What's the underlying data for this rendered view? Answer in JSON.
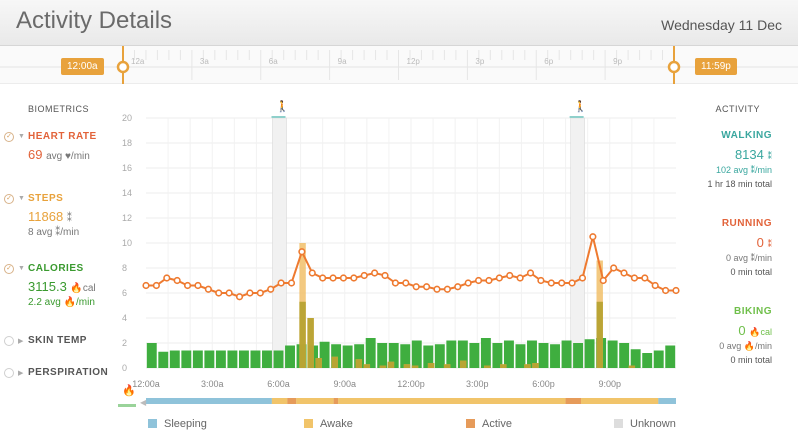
{
  "header": {
    "title": "Activity Details",
    "date": "Wednesday 11 Dec"
  },
  "timebar": {
    "start_label": "12:00a",
    "end_label": "11:59p",
    "ticks": [
      "12a",
      "3a",
      "6a",
      "9a",
      "12p",
      "3p",
      "6p",
      "9p"
    ],
    "selection_start_hour": 0,
    "selection_end_hour": 24
  },
  "biometrics": {
    "heading": "BIOMETRICS",
    "heart_rate": {
      "label": "HEART RATE",
      "value": "69",
      "unit": "avg ♥/min",
      "color": "#e2633a"
    },
    "steps": {
      "label": "STEPS",
      "value": "11868",
      "unit": "⁑",
      "sub": "8 avg ⁑/min",
      "color": "#e8a23c"
    },
    "calories": {
      "label": "CALORIES",
      "value": "3115.3",
      "unit": "🔥cal",
      "sub": "2.2 avg 🔥/min",
      "color": "#3a9a2f"
    },
    "skin_temp": {
      "label": "SKIN TEMP"
    },
    "perspiration": {
      "label": "PERSPIRATION"
    }
  },
  "activity": {
    "heading": "ACTIVITY",
    "walking": {
      "label": "WALKING",
      "value": "8134",
      "unit": "⁑",
      "avg": "102 avg ⁑/min",
      "total": "1 hr 18 min total",
      "color": "#3aa79f"
    },
    "running": {
      "label": "RUNNING",
      "value": "0",
      "unit": "⁑",
      "avg": "0 avg ⁑/min",
      "total": "0 min total",
      "color": "#e2633a"
    },
    "biking": {
      "label": "BIKING",
      "value": "0",
      "unit": "🔥cal",
      "avg": "0 avg 🔥/min",
      "total": "0 min total",
      "color": "#6fbf4a"
    }
  },
  "legend": [
    {
      "label": "Sleeping",
      "color": "#8fc3da"
    },
    {
      "label": "Awake",
      "color": "#f1c46a"
    },
    {
      "label": "Active",
      "color": "#e69b5a"
    },
    {
      "label": "Unknown",
      "color": "#dddddd"
    }
  ],
  "chart_data": {
    "type": "bar",
    "x_tick_labels": [
      "12:00a",
      "3:00a",
      "6:00a",
      "9:00a",
      "12:00p",
      "3:00p",
      "6:00p",
      "9:00p"
    ],
    "y_ticks": [
      0,
      2,
      4,
      6,
      8,
      10,
      12,
      14,
      16,
      18,
      20
    ],
    "ylim": [
      0,
      20
    ],
    "xlim_hours": [
      0,
      24
    ],
    "colors": {
      "calories": "#3fae3f",
      "steps": "#f1c06a",
      "heart": "#ee7a30",
      "overlap": "#b5a12d"
    },
    "calories_per_30min": [
      2.0,
      1.3,
      1.4,
      1.4,
      1.4,
      1.4,
      1.4,
      1.4,
      1.4,
      1.4,
      1.4,
      1.4,
      1.8,
      1.9,
      1.8,
      2.1,
      1.9,
      1.8,
      1.9,
      2.4,
      2.0,
      2.0,
      1.9,
      2.2,
      1.8,
      1.9,
      2.2,
      2.2,
      2.0,
      2.4,
      2.0,
      2.2,
      1.9,
      2.2,
      2.0,
      1.9,
      2.2,
      2.0,
      2.3,
      2.4,
      2.2,
      2.0,
      1.5,
      1.2,
      1.4,
      1.8
    ],
    "steps_per_30min": [
      0,
      0,
      0,
      0,
      0,
      0,
      0,
      0,
      0,
      0,
      0,
      0,
      0,
      0,
      0,
      0,
      0,
      0,
      0,
      10.0,
      4.0,
      0.8,
      0,
      0.9,
      0,
      0,
      0.7,
      0.3,
      0,
      0.2,
      0.5,
      0,
      0.3,
      0.2,
      0,
      0.4,
      0,
      0.3,
      0,
      0.6,
      0,
      0,
      0.2,
      0,
      0.3,
      0,
      0,
      0.3,
      0.4,
      0,
      0,
      0,
      0,
      0,
      0,
      0,
      8.6,
      0,
      0,
      0,
      0.2,
      0,
      0,
      0,
      0,
      0
    ],
    "heart_rate_per_30min": [
      6.6,
      6.6,
      7.2,
      7.0,
      6.6,
      6.6,
      6.3,
      6.0,
      6.0,
      5.7,
      6.0,
      6.0,
      6.3,
      6.8,
      6.8,
      9.3,
      7.6,
      7.2,
      7.2,
      7.2,
      7.2,
      7.4,
      7.6,
      7.4,
      6.8,
      6.8,
      6.5,
      6.5,
      6.3,
      6.3,
      6.5,
      6.8,
      7.0,
      7.0,
      7.2,
      7.4,
      7.2,
      7.6,
      7.0,
      6.8,
      6.8,
      6.8,
      7.2,
      10.5,
      7.0,
      8.0,
      7.6,
      7.2,
      7.2,
      6.6,
      6.2,
      6.2
    ],
    "activity_spikes_hour": [
      6.0,
      19.5
    ],
    "activity_bar": [
      {
        "state": "Sleeping",
        "from": 0,
        "to": 5.7
      },
      {
        "state": "Awake",
        "from": 5.7,
        "to": 6.4
      },
      {
        "state": "Active",
        "from": 6.4,
        "to": 6.8
      },
      {
        "state": "Awake",
        "from": 6.8,
        "to": 8.5
      },
      {
        "state": "Active",
        "from": 8.5,
        "to": 8.7
      },
      {
        "state": "Awake",
        "from": 8.7,
        "to": 19.0
      },
      {
        "state": "Active",
        "from": 19.0,
        "to": 19.7
      },
      {
        "state": "Awake",
        "from": 19.7,
        "to": 23.2
      },
      {
        "state": "Sleeping",
        "from": 23.2,
        "to": 24
      }
    ]
  }
}
